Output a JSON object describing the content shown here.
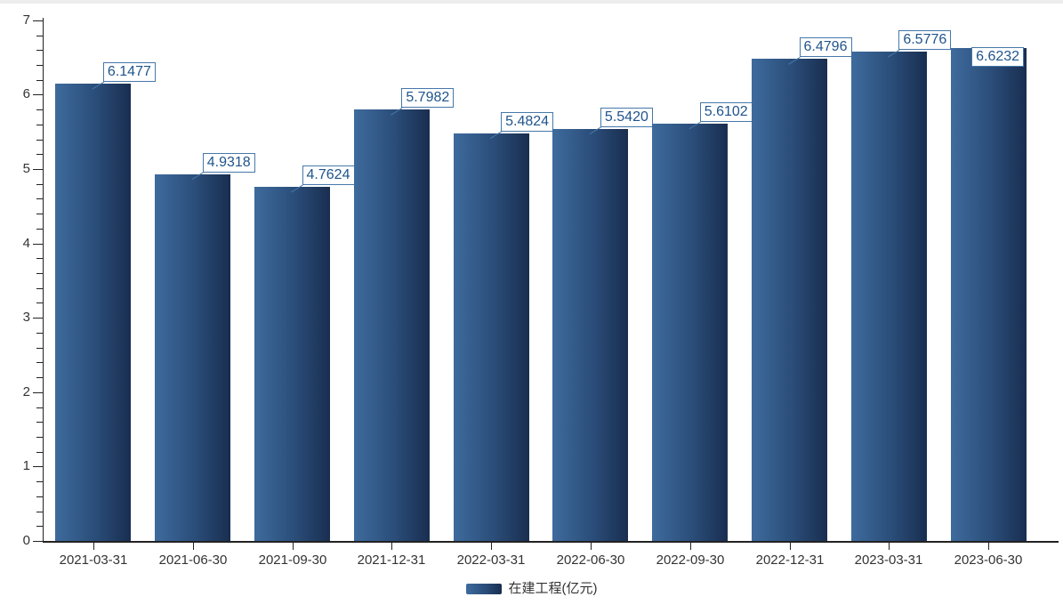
{
  "chart_data": {
    "type": "bar",
    "title": "",
    "categories": [
      "2021-03-31",
      "2021-06-30",
      "2021-09-30",
      "2021-12-31",
      "2022-03-31",
      "2022-06-30",
      "2022-09-30",
      "2022-12-31",
      "2023-03-31",
      "2023-06-30"
    ],
    "series": [
      {
        "name": "在建工程(亿元)",
        "values": [
          6.1477,
          4.9318,
          4.7624,
          5.7982,
          5.4824,
          5.542,
          5.6102,
          6.4796,
          6.5776,
          6.6232
        ]
      }
    ],
    "value_labels": [
      "6.1477",
      "4.9318",
      "4.7624",
      "5.7982",
      "5.4824",
      "5.5420",
      "5.6102",
      "6.4796",
      "6.5776",
      "6.6232"
    ],
    "xlabel": "",
    "ylabel": "",
    "ylim": [
      0,
      7
    ],
    "y_ticks": [
      0,
      1,
      2,
      3,
      4,
      5,
      6,
      7
    ],
    "y_minor_step": 0.2,
    "grid": false,
    "legend_position": "bottom"
  },
  "colors": {
    "bar_gradient_start": "#3e6b9d",
    "bar_gradient_mid": "#2a4c78",
    "bar_gradient_end": "#192e50",
    "label_border": "#4678aa",
    "label_text": "#1f548c",
    "axis_line": "#222222",
    "axis_text": "#333333",
    "top_strip": "#ededed"
  }
}
